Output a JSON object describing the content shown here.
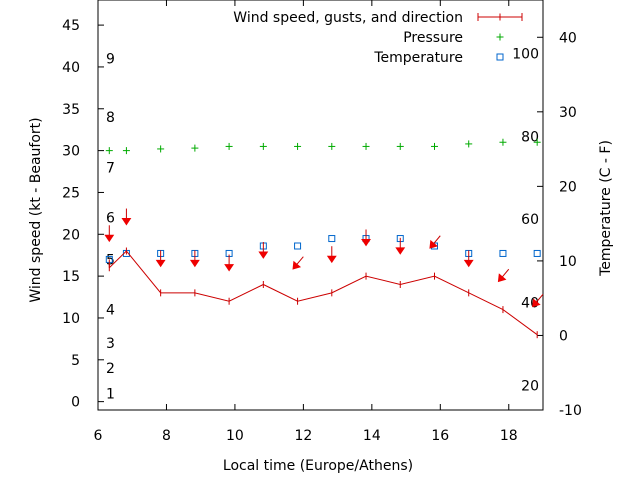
{
  "chart_data": {
    "type": "line",
    "xlabel": "Local time (Europe/Athens)",
    "ylabel": "Wind speed (kt - Beaufort)",
    "y2label": "Temperature (C - F)",
    "xlim": [
      6,
      19
    ],
    "ylim": [
      -1,
      48
    ],
    "y2lim": [
      -10,
      45
    ],
    "x_ticks": [
      6,
      8,
      10,
      12,
      14,
      16,
      18
    ],
    "y_ticks": [
      0,
      5,
      10,
      15,
      20,
      25,
      30,
      35,
      40,
      45
    ],
    "y2_ticks": [
      -10,
      0,
      10,
      20,
      30,
      40
    ],
    "beaufort_labels": [
      {
        "label": "1",
        "y": 1
      },
      {
        "label": "2",
        "y": 4
      },
      {
        "label": "3",
        "y": 7
      },
      {
        "label": "4",
        "y": 11
      },
      {
        "label": "5",
        "y": 17
      },
      {
        "label": "6",
        "y": 22
      },
      {
        "label": "7",
        "y": 28
      },
      {
        "label": "8",
        "y": 34
      },
      {
        "label": "9",
        "y": 41
      }
    ],
    "fahrenheit_labels": [
      {
        "label": "20",
        "temp": -6.7
      },
      {
        "label": "40",
        "temp": 4.4
      },
      {
        "label": "60",
        "temp": 15.6
      },
      {
        "label": "80",
        "temp": 26.7
      },
      {
        "label": "100",
        "temp": 37.8
      }
    ],
    "series": [
      {
        "name": "Wind speed, gusts, and direction",
        "color": "#cc0000",
        "x": [
          6.33,
          6.83,
          7.83,
          8.83,
          9.83,
          10.83,
          11.83,
          12.83,
          13.83,
          14.83,
          15.83,
          16.83,
          17.83,
          18.83
        ],
        "values": [
          16,
          18,
          13,
          13,
          12,
          14,
          12,
          13,
          15,
          14,
          15,
          13,
          11,
          8
        ],
        "gusts": [
          17,
          18,
          null,
          null,
          null,
          null,
          null,
          null,
          null,
          null,
          null,
          null,
          null,
          null
        ]
      },
      {
        "name": "Pressure",
        "color": "#00aa00",
        "x": [
          6.33,
          6.83,
          7.83,
          8.83,
          9.83,
          10.83,
          11.83,
          12.83,
          13.83,
          14.83,
          15.83,
          16.83,
          17.83,
          18.83
        ],
        "values": [
          30,
          30,
          30.2,
          30.3,
          30.5,
          30.5,
          30.5,
          30.5,
          30.5,
          30.5,
          30.5,
          30.8,
          31,
          31
        ]
      },
      {
        "name": "Temperature",
        "color": "#0066cc",
        "x": [
          6.33,
          6.83,
          7.83,
          8.83,
          9.83,
          10.83,
          11.83,
          12.83,
          13.83,
          14.83,
          15.83,
          16.83,
          17.83,
          18.83
        ],
        "values": [
          10.2,
          11,
          11,
          11,
          11,
          12,
          12,
          13,
          13,
          13,
          12,
          11,
          11,
          11
        ]
      }
    ],
    "wind_arrows": [
      {
        "x": 6.33,
        "y": 20,
        "dir": "S"
      },
      {
        "x": 6.83,
        "y": 22,
        "dir": "S"
      },
      {
        "x": 7.83,
        "y": 17,
        "dir": "S"
      },
      {
        "x": 8.83,
        "y": 17,
        "dir": "S"
      },
      {
        "x": 9.83,
        "y": 16.5,
        "dir": "S"
      },
      {
        "x": 10.83,
        "y": 18,
        "dir": "S"
      },
      {
        "x": 11.83,
        "y": 16.5,
        "dir": "SW"
      },
      {
        "x": 12.83,
        "y": 17.5,
        "dir": "S"
      },
      {
        "x": 13.83,
        "y": 19.5,
        "dir": "S"
      },
      {
        "x": 14.83,
        "y": 18.5,
        "dir": "S"
      },
      {
        "x": 15.83,
        "y": 19,
        "dir": "SW"
      },
      {
        "x": 16.83,
        "y": 17,
        "dir": "S"
      },
      {
        "x": 17.83,
        "y": 15,
        "dir": "SW"
      },
      {
        "x": 18.83,
        "y": 12,
        "dir": "SW"
      }
    ]
  }
}
